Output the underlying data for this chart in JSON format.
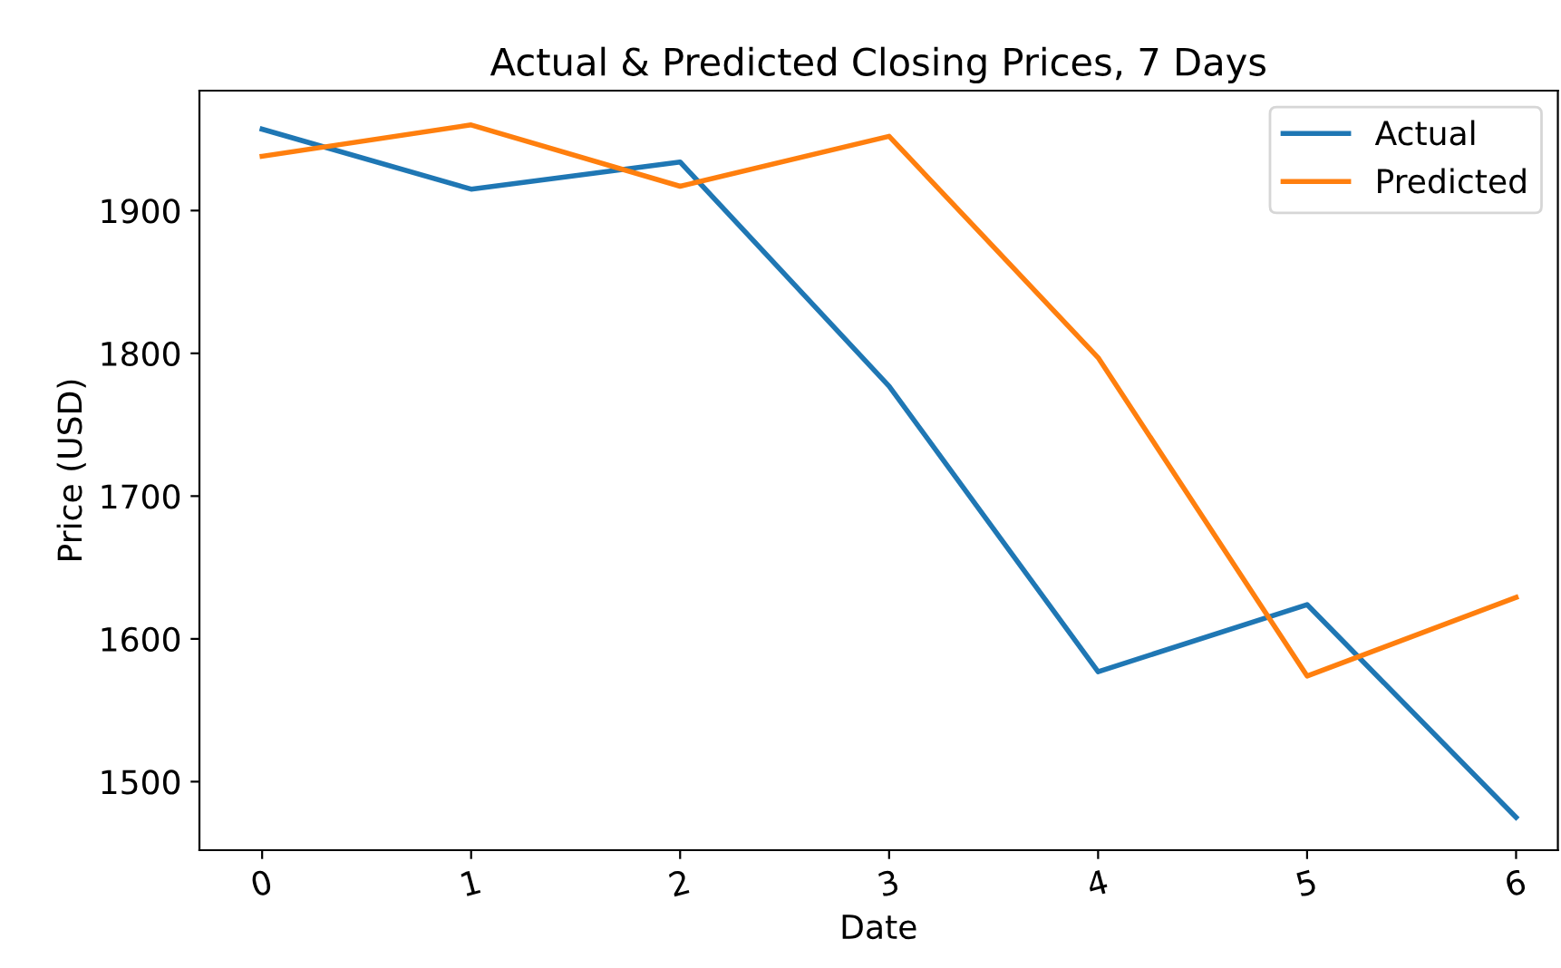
{
  "chart_data": {
    "type": "line",
    "title": "Actual & Predicted Closing Prices, 7 Days",
    "xlabel": "Date",
    "ylabel": "Price (USD)",
    "x": [
      0,
      1,
      2,
      3,
      4,
      5,
      6
    ],
    "series": [
      {
        "name": "Actual",
        "color": "#1f77b4",
        "values": [
          1957,
          1915,
          1934,
          1777,
          1577,
          1624,
          1475
        ]
      },
      {
        "name": "Predicted",
        "color": "#ff7f0e",
        "values": [
          1938,
          1960,
          1917,
          1952,
          1797,
          1574,
          1629
        ]
      }
    ],
    "xlim": [
      -0.3,
      6.2
    ],
    "ylim": [
      1452,
      1984
    ],
    "xticks": [
      0,
      1,
      2,
      3,
      4,
      5,
      6
    ],
    "yticks": [
      1500,
      1600,
      1700,
      1800,
      1900
    ],
    "legend": "top right",
    "grid": false,
    "marker": "none",
    "line_style": "solid"
  }
}
